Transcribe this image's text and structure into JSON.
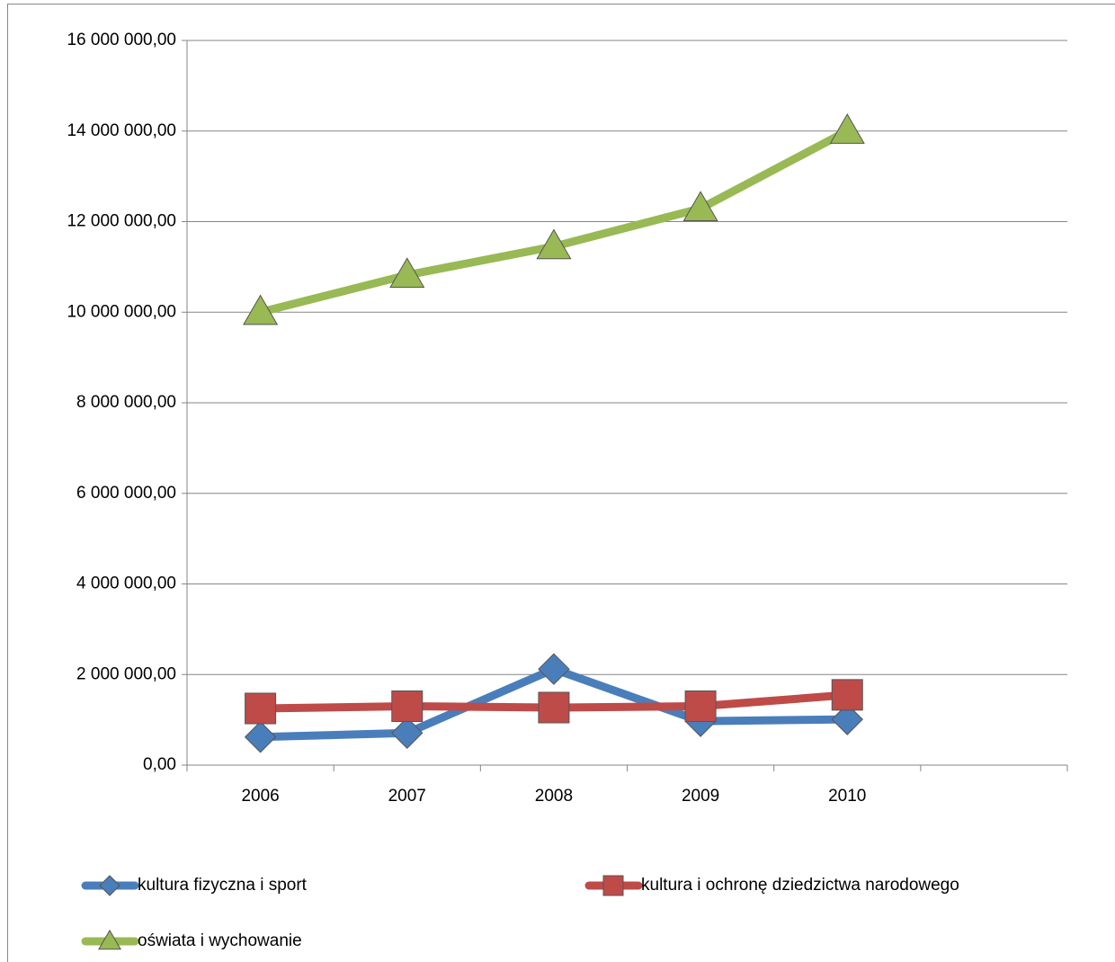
{
  "chart_data": {
    "type": "line",
    "categories": [
      "2006",
      "2007",
      "2008",
      "2009",
      "2010",
      null
    ],
    "series": [
      {
        "name": "kultura fizyczna i sport",
        "color": "#4a7ebb",
        "marker": "diamond",
        "values": [
          620000,
          710000,
          2120000,
          970000,
          1010000,
          null
        ]
      },
      {
        "name": "kultura i ochronę dziedzictwa narodowego",
        "color": "#be4b48",
        "marker": "square",
        "values": [
          1250000,
          1300000,
          1270000,
          1300000,
          1550000,
          null
        ]
      },
      {
        "name": "oświata i wychowanie",
        "color": "#98b954",
        "marker": "triangle",
        "values": [
          10000000,
          10820000,
          11450000,
          12290000,
          14000000,
          null
        ]
      }
    ],
    "ylim": [
      0,
      16000000
    ],
    "yticks": [
      {
        "value": 0,
        "label": "0,00"
      },
      {
        "value": 2000000,
        "label": "2 000 000,00"
      },
      {
        "value": 4000000,
        "label": "4 000 000,00"
      },
      {
        "value": 6000000,
        "label": "6 000 000,00"
      },
      {
        "value": 8000000,
        "label": "8 000 000,00"
      },
      {
        "value": 10000000,
        "label": "10 000 000,00"
      },
      {
        "value": 12000000,
        "label": "12 000 000,00"
      },
      {
        "value": 14000000,
        "label": "14 000 000,00"
      },
      {
        "value": 16000000,
        "label": "16 000 000,00"
      }
    ],
    "grid": true,
    "legend": "bottom"
  }
}
